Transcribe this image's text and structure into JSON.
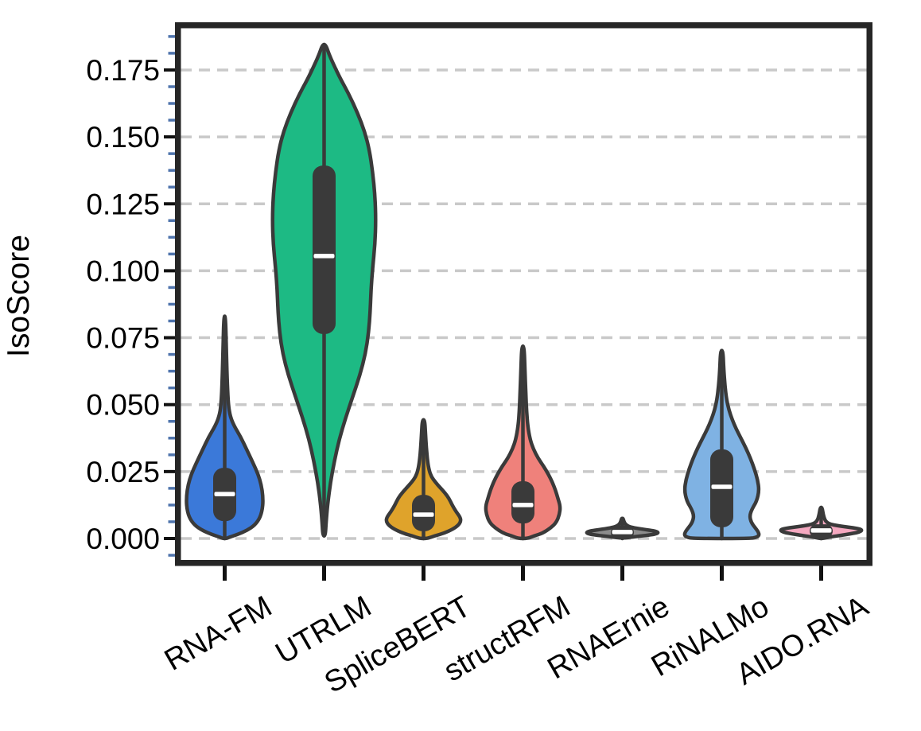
{
  "chart_data": {
    "type": "violin",
    "title": "",
    "xlabel": "",
    "ylabel": "IsoScore",
    "ylim": [
      -0.008,
      0.191
    ],
    "grid": {
      "horizontal": true,
      "style": "dashed",
      "color": "#C9C9C9"
    },
    "yticks": {
      "major_values": [
        0.0,
        0.025,
        0.05,
        0.075,
        0.1,
        0.125,
        0.15,
        0.175
      ],
      "labels": [
        "0.000",
        "0.025",
        "0.050",
        "0.075",
        "0.100",
        "0.125",
        "0.150",
        "0.175"
      ],
      "minor_step": 0.00625,
      "minor_range": [
        -0.00625,
        0.1875
      ]
    },
    "xtick_rotation_deg": 30,
    "categories": [
      "RNA-FM",
      "UTRLM",
      "SpliceBERT",
      "structRFM",
      "RNAErnie",
      "RiNALMo",
      "AIDO.RNA"
    ],
    "series": [
      {
        "name": "RNA-FM",
        "slug": "rna-fm",
        "color": "#3B79D9",
        "stats": {
          "min": 0.0,
          "max": 0.083,
          "q1": 0.0065,
          "q3": 0.0264,
          "median": 0.0166
        },
        "profile": [
          [
            0.083,
            1
          ],
          [
            0.072,
            2
          ],
          [
            0.06,
            3
          ],
          [
            0.05,
            4.5
          ],
          [
            0.0455,
            7
          ],
          [
            0.042,
            12
          ],
          [
            0.038,
            20
          ],
          [
            0.033,
            28
          ],
          [
            0.028,
            36
          ],
          [
            0.024,
            42
          ],
          [
            0.02,
            46
          ],
          [
            0.016,
            48
          ],
          [
            0.012,
            48
          ],
          [
            0.008,
            45
          ],
          [
            0.005,
            38
          ],
          [
            0.003,
            28
          ],
          [
            0.0015,
            16
          ],
          [
            0.0005,
            6
          ],
          [
            0.0,
            2
          ]
        ]
      },
      {
        "name": "UTRLM",
        "slug": "utrlm",
        "color": "#1DBA84",
        "stats": {
          "min": 0.001,
          "max": 0.1845,
          "q1": 0.0764,
          "q3": 0.1393,
          "median": 0.1055
        },
        "profile": [
          [
            0.1845,
            2
          ],
          [
            0.181,
            6
          ],
          [
            0.177,
            12
          ],
          [
            0.172,
            20
          ],
          [
            0.166,
            31
          ],
          [
            0.159,
            42
          ],
          [
            0.152,
            51
          ],
          [
            0.145,
            57
          ],
          [
            0.137,
            61
          ],
          [
            0.128,
            64
          ],
          [
            0.119,
            65
          ],
          [
            0.11,
            64
          ],
          [
            0.101,
            61
          ],
          [
            0.093,
            59
          ],
          [
            0.085,
            58
          ],
          [
            0.077,
            56
          ],
          [
            0.069,
            52
          ],
          [
            0.061,
            45
          ],
          [
            0.053,
            36
          ],
          [
            0.045,
            27
          ],
          [
            0.037,
            19
          ],
          [
            0.029,
            13
          ],
          [
            0.021,
            8
          ],
          [
            0.013,
            4.5
          ],
          [
            0.006,
            2.5
          ],
          [
            0.001,
            1.5
          ]
        ]
      },
      {
        "name": "SpliceBERT",
        "slug": "splicebert",
        "color": "#DFA32B",
        "stats": {
          "min": 0.0,
          "max": 0.0443,
          "q1": 0.0027,
          "q3": 0.0163,
          "median": 0.0089
        },
        "profile": [
          [
            0.0443,
            1.5
          ],
          [
            0.039,
            2.5
          ],
          [
            0.034,
            3.5
          ],
          [
            0.029,
            5
          ],
          [
            0.0255,
            7
          ],
          [
            0.023,
            10
          ],
          [
            0.021,
            15
          ],
          [
            0.019,
            21
          ],
          [
            0.017,
            27
          ],
          [
            0.015,
            32
          ],
          [
            0.0125,
            36
          ],
          [
            0.01,
            41
          ],
          [
            0.008,
            46
          ],
          [
            0.0065,
            47
          ],
          [
            0.005,
            44
          ],
          [
            0.0035,
            37
          ],
          [
            0.002,
            26
          ],
          [
            0.001,
            14
          ],
          [
            0.0,
            5
          ]
        ]
      },
      {
        "name": "structRFM",
        "slug": "structrfm",
        "color": "#EF817B",
        "stats": {
          "min": 0.0,
          "max": 0.0718,
          "q1": 0.0056,
          "q3": 0.0214,
          "median": 0.0125
        },
        "profile": [
          [
            0.0718,
            1.5
          ],
          [
            0.063,
            2.5
          ],
          [
            0.055,
            3.5
          ],
          [
            0.048,
            4.5
          ],
          [
            0.042,
            6
          ],
          [
            0.037,
            9
          ],
          [
            0.0335,
            13
          ],
          [
            0.03,
            19
          ],
          [
            0.027,
            26
          ],
          [
            0.024,
            32
          ],
          [
            0.021,
            37
          ],
          [
            0.018,
            41
          ],
          [
            0.015,
            44
          ],
          [
            0.012,
            47
          ],
          [
            0.009,
            46
          ],
          [
            0.006,
            42
          ],
          [
            0.004,
            35
          ],
          [
            0.002,
            25
          ],
          [
            0.001,
            14
          ],
          [
            0.0,
            6
          ]
        ]
      },
      {
        "name": "RNAErnie",
        "slug": "rnaernie",
        "color": "#8C8C8C",
        "stats": {
          "min": 0.0,
          "max": 0.0075,
          "q1": 0.0,
          "q3": 0.0045,
          "median": 0.0024
        },
        "profile": [
          [
            0.0075,
            1
          ],
          [
            0.0063,
            2
          ],
          [
            0.0055,
            3.5
          ],
          [
            0.0048,
            6
          ],
          [
            0.0042,
            11
          ],
          [
            0.0037,
            20
          ],
          [
            0.0033,
            30
          ],
          [
            0.0029,
            39
          ],
          [
            0.0025,
            44
          ],
          [
            0.0021,
            45
          ],
          [
            0.0017,
            42
          ],
          [
            0.0013,
            34
          ],
          [
            0.0009,
            22
          ],
          [
            0.0005,
            11
          ],
          [
            0.0002,
            4
          ]
        ]
      },
      {
        "name": "RiNALMo",
        "slug": "rinalmo",
        "color": "#7FB2E3",
        "stats": {
          "min": 0.0,
          "max": 0.0702,
          "q1": 0.0042,
          "q3": 0.0333,
          "median": 0.0193
        },
        "profile": [
          [
            0.0702,
            1.5
          ],
          [
            0.063,
            2.5
          ],
          [
            0.057,
            4
          ],
          [
            0.052,
            6
          ],
          [
            0.048,
            9
          ],
          [
            0.0445,
            13
          ],
          [
            0.041,
            18
          ],
          [
            0.0375,
            24
          ],
          [
            0.034,
            30
          ],
          [
            0.03,
            36
          ],
          [
            0.026,
            41
          ],
          [
            0.022,
            45
          ],
          [
            0.018,
            47
          ],
          [
            0.014,
            44
          ],
          [
            0.011,
            38
          ],
          [
            0.0085,
            35
          ],
          [
            0.006,
            37
          ],
          [
            0.004,
            42
          ],
          [
            0.0025,
            46
          ],
          [
            0.0012,
            47
          ],
          [
            0.0005,
            44
          ],
          [
            0.0,
            36
          ]
        ]
      },
      {
        "name": "AIDO.RNA",
        "slug": "aido-rna",
        "color": "#F5A8C0",
        "stats": {
          "min": 0.0,
          "max": 0.0116,
          "q1": 0.0003,
          "q3": 0.0053,
          "median": 0.003
        },
        "profile": [
          [
            0.0116,
            1
          ],
          [
            0.01,
            2
          ],
          [
            0.0085,
            3
          ],
          [
            0.007,
            4.5
          ],
          [
            0.006,
            7
          ],
          [
            0.0053,
            12
          ],
          [
            0.0048,
            20
          ],
          [
            0.0044,
            30
          ],
          [
            0.004,
            40
          ],
          [
            0.0036,
            48
          ],
          [
            0.0032,
            51
          ],
          [
            0.0027,
            50
          ],
          [
            0.0022,
            45
          ],
          [
            0.0017,
            36
          ],
          [
            0.0012,
            25
          ],
          [
            0.0007,
            14
          ],
          [
            0.0003,
            6
          ],
          [
            0.0,
            2
          ]
        ]
      }
    ],
    "style": {
      "background": "#FFFFFF",
      "violin_outline": "#3A3A3A",
      "box_fill": "#3A3A3A",
      "median_color": "#FFFFFF",
      "frame_color": "#262626",
      "major_tick_color": "#111111",
      "minor_tick_color": "#4F74AD",
      "grid_color": "#C9C9C9",
      "text_color": "#000000"
    }
  }
}
